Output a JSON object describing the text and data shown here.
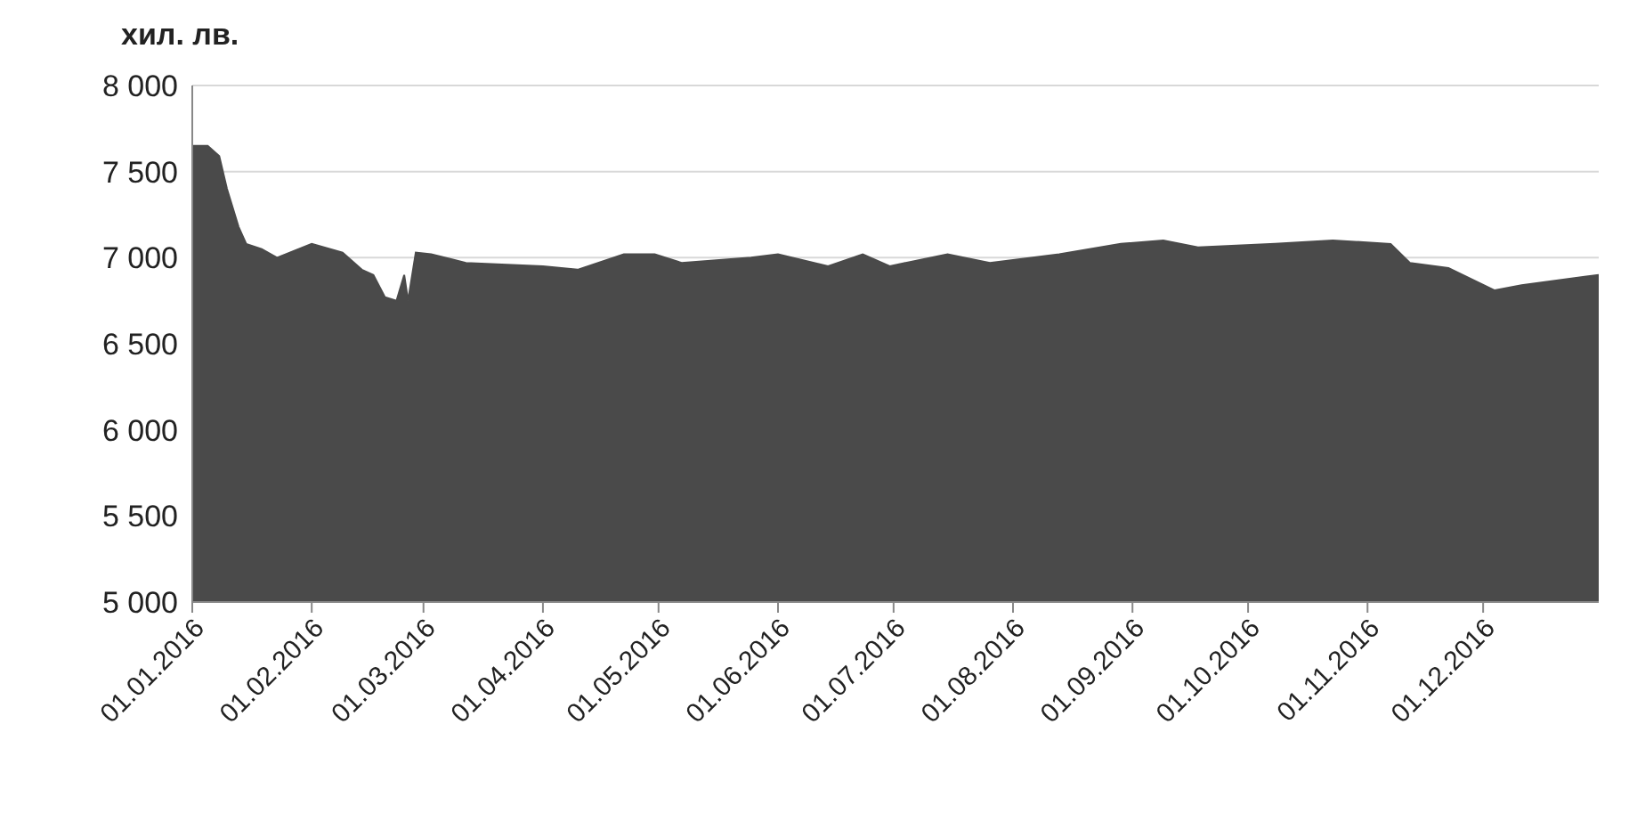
{
  "chart_data": {
    "type": "area",
    "ylabel": "хил. лв.",
    "x": [
      "2016-01-01",
      "2016-01-05",
      "2016-01-08",
      "2016-01-10",
      "2016-01-13",
      "2016-01-15",
      "2016-01-19",
      "2016-01-23",
      "2016-02-01",
      "2016-02-09",
      "2016-02-14",
      "2016-02-17",
      "2016-02-20",
      "2016-02-23",
      "2016-02-25",
      "2016-02-26",
      "2016-02-28",
      "2016-03-03",
      "2016-03-12",
      "2016-04-01",
      "2016-04-10",
      "2016-04-22",
      "2016-04-30",
      "2016-05-07",
      "2016-05-25",
      "2016-06-01",
      "2016-06-14",
      "2016-06-23",
      "2016-06-30",
      "2016-07-15",
      "2016-07-26",
      "2016-08-13",
      "2016-08-29",
      "2016-09-09",
      "2016-09-18",
      "2016-10-08",
      "2016-10-23",
      "2016-11-07",
      "2016-11-12",
      "2016-11-22",
      "2016-12-04",
      "2016-12-11",
      "2016-12-31"
    ],
    "series": [
      {
        "color": "#4a4a4a",
        "values": [
          7650,
          7650,
          7590,
          7400,
          7180,
          7080,
          7050,
          7000,
          7080,
          7030,
          6930,
          6900,
          6770,
          6750,
          6900,
          6750,
          7030,
          7020,
          6970,
          6950,
          6930,
          7020,
          7020,
          6970,
          7000,
          7020,
          6950,
          7020,
          6950,
          7020,
          6970,
          7020,
          7080,
          7100,
          7060,
          7080,
          7100,
          7080,
          6970,
          6940,
          6810,
          6840,
          6900
        ]
      }
    ],
    "xlim": [
      "2016-01-01",
      "2016-12-31"
    ],
    "xticks": [
      {
        "value": "2016-01-01",
        "label": "01.01.2016"
      },
      {
        "value": "2016-02-01",
        "label": "01.02.2016"
      },
      {
        "value": "2016-03-01",
        "label": "01.03.2016"
      },
      {
        "value": "2016-04-01",
        "label": "01.04.2016"
      },
      {
        "value": "2016-05-01",
        "label": "01.05.2016"
      },
      {
        "value": "2016-06-01",
        "label": "01.06.2016"
      },
      {
        "value": "2016-07-01",
        "label": "01.07.2016"
      },
      {
        "value": "2016-08-01",
        "label": "01.08.2016"
      },
      {
        "value": "2016-09-01",
        "label": "01.09.2016"
      },
      {
        "value": "2016-10-01",
        "label": "01.10.2016"
      },
      {
        "value": "2016-11-01",
        "label": "01.11.2016"
      },
      {
        "value": "2016-12-01",
        "label": "01.12.2016"
      }
    ],
    "ylim": [
      5000,
      8000
    ],
    "yticks": [
      {
        "value": 5000,
        "label": "5 000"
      },
      {
        "value": 5500,
        "label": "5 500"
      },
      {
        "value": 6000,
        "label": "6 000"
      },
      {
        "value": 6500,
        "label": "6 500"
      },
      {
        "value": 7000,
        "label": "7 000"
      },
      {
        "value": 7500,
        "label": "7 500"
      },
      {
        "value": 8000,
        "label": "8 000"
      }
    ],
    "grid": "y",
    "legend": false
  }
}
